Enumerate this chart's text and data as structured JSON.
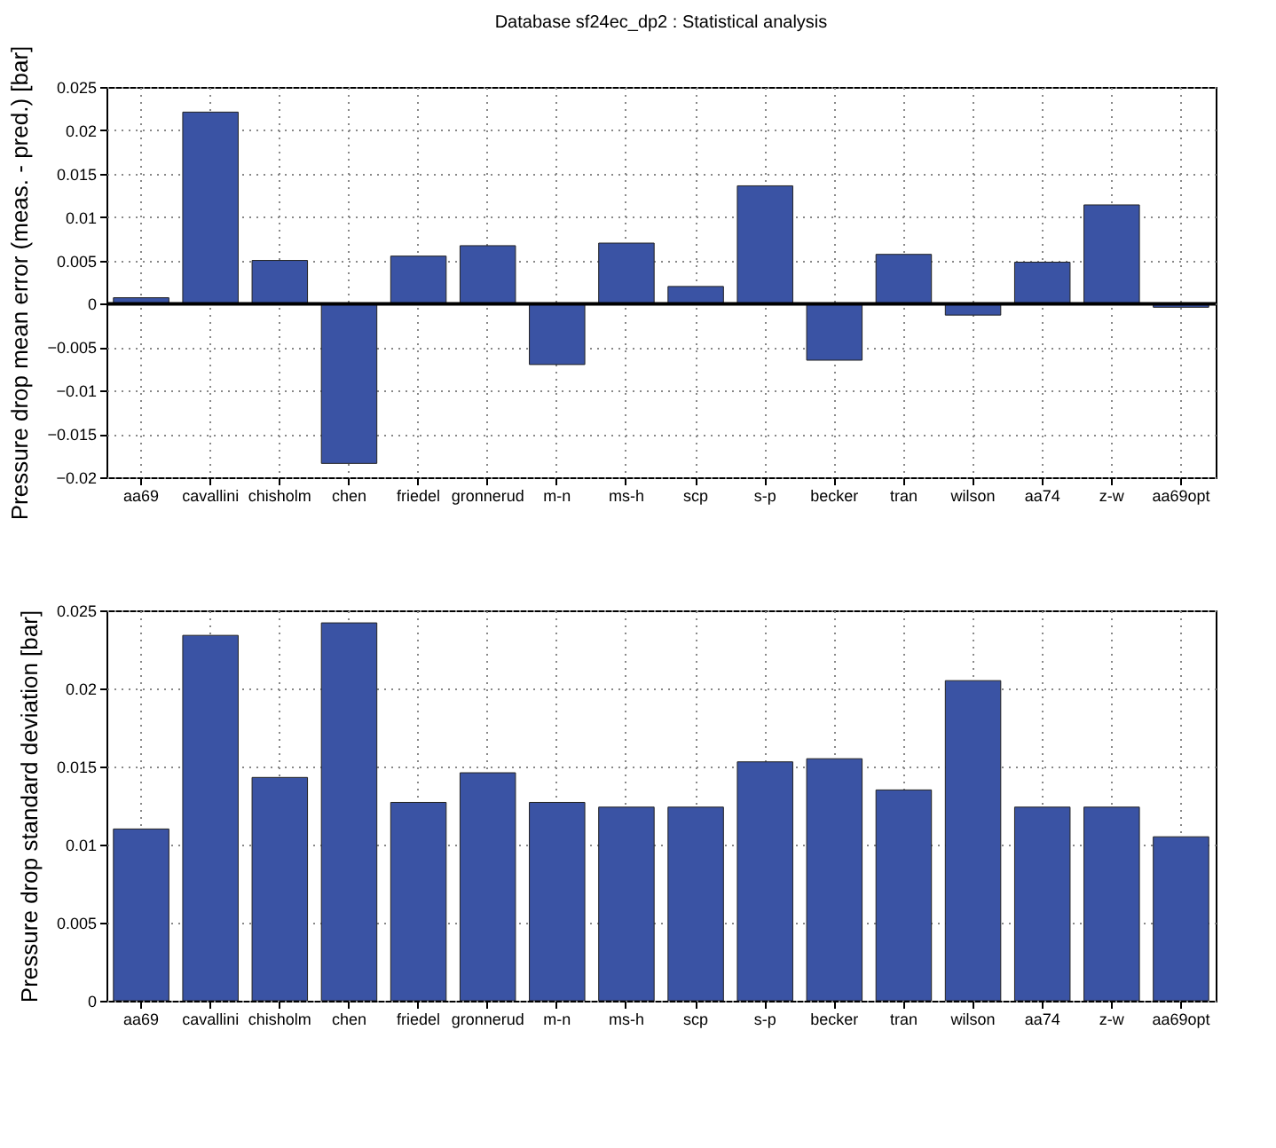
{
  "chart_data": [
    {
      "type": "bar",
      "title": "Database sf24ec_dp2 : Statistical analysis",
      "ylabel": "Pressure drop mean error (meas. - pred.) [bar]",
      "categories": [
        "aa69",
        "cavallini",
        "chisholm",
        "chen",
        "friedel",
        "gronnerud",
        "m-n",
        "ms-h",
        "scp",
        "s-p",
        "becker",
        "tran",
        "wilson",
        "aa74",
        "z-w",
        "aa69opt"
      ],
      "values": [
        0.0007,
        0.0221,
        0.005,
        -0.0184,
        0.0055,
        0.0067,
        -0.007,
        0.007,
        0.002,
        0.0136,
        -0.0065,
        0.0057,
        -0.0013,
        0.0048,
        0.0114,
        -0.0004
      ],
      "color": "#3a53a4",
      "ylim": [
        -0.02,
        0.025
      ],
      "yticks": [
        -0.02,
        -0.015,
        -0.01,
        -0.005,
        0,
        0.005,
        0.01,
        0.015,
        0.02,
        0.025
      ],
      "grid": true,
      "ref_lines": [
        {
          "axis": "y",
          "value": 0,
          "color": "#000000"
        }
      ]
    },
    {
      "type": "bar",
      "ylabel": "Pressure drop standard deviation [bar]",
      "categories": [
        "aa69",
        "cavallini",
        "chisholm",
        "chen",
        "friedel",
        "gronnerud",
        "m-n",
        "ms-h",
        "scp",
        "s-p",
        "becker",
        "tran",
        "wilson",
        "aa74",
        "z-w",
        "aa69opt"
      ],
      "values": [
        0.011,
        0.0234,
        0.0143,
        0.0242,
        0.0127,
        0.0146,
        0.0127,
        0.0124,
        0.0124,
        0.0153,
        0.0155,
        0.0135,
        0.0205,
        0.0124,
        0.0124,
        0.0105
      ],
      "color": "#3a53a4",
      "ylim": [
        0,
        0.025
      ],
      "yticks": [
        0,
        0.005,
        0.01,
        0.015,
        0.02,
        0.025
      ],
      "grid": true
    }
  ]
}
